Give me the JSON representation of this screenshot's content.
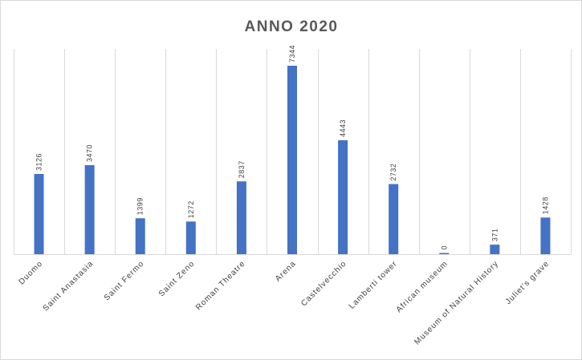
{
  "chart_data": {
    "type": "bar",
    "title": "ANNO 2020",
    "xlabel": "",
    "ylabel": "",
    "categories": [
      "Duomo",
      "Saint Anastasia",
      "Saint Fermo",
      "Saint Zeno",
      "Roman Theatre",
      "Arena",
      "Castelvecchio",
      "Lamberti tower",
      "African museum",
      "Museum of Natural History",
      "Juliet's grave"
    ],
    "values": [
      3126,
      3470,
      1399,
      1272,
      2837,
      7344,
      4443,
      2732,
      0,
      371,
      1428
    ],
    "ylim": [
      0,
      8000
    ],
    "grid": "vertical-category-separators",
    "legend": "none",
    "colors": {
      "bar": "#4472C4",
      "grid": "#D9D9D9",
      "title": "#595959"
    }
  }
}
